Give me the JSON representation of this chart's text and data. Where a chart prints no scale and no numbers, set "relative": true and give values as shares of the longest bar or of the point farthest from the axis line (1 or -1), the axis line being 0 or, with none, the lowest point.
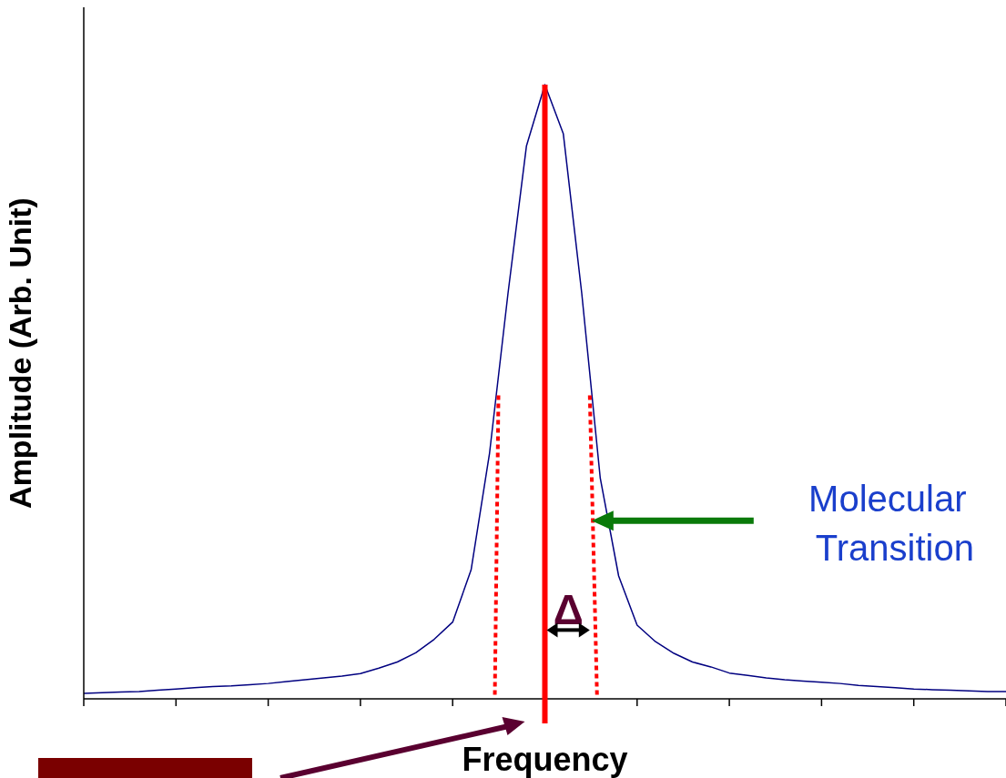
{
  "chart_data": {
    "type": "line",
    "xlabel": "Frequency",
    "ylabel": "Amplitude (Arb. Unit)",
    "relative": true,
    "categories": [
      null,
      null,
      null,
      null,
      null,
      null,
      null,
      null,
      null,
      null,
      null,
      null,
      null,
      null,
      null,
      null,
      null,
      null,
      null,
      null,
      null,
      null,
      null,
      null,
      null,
      null,
      null,
      null,
      null,
      null,
      null,
      null,
      null,
      null,
      null,
      null,
      null,
      null,
      null,
      null,
      null,
      null,
      null,
      null,
      null,
      null,
      null,
      null,
      null,
      null,
      null
    ],
    "series": [
      {
        "color": "#000080",
        "values": [
          0.009,
          0.01,
          0.011,
          0.012,
          0.014,
          0.016,
          0.018,
          0.02,
          0.021,
          0.023,
          0.025,
          0.028,
          0.031,
          0.034,
          0.037,
          0.041,
          0.05,
          0.06,
          0.075,
          0.097,
          0.125,
          0.21,
          0.4,
          0.66,
          0.9,
          1.0,
          0.92,
          0.66,
          0.36,
          0.2,
          0.12,
          0.093,
          0.074,
          0.06,
          0.052,
          0.042,
          0.038,
          0.034,
          0.031,
          0.029,
          0.027,
          0.025,
          0.022,
          0.02,
          0.018,
          0.016,
          0.015,
          0.014,
          0.013,
          0.012,
          0.012
        ]
      }
    ],
    "annotations": [
      "Molecular Transition",
      "Δ"
    ]
  }
}
